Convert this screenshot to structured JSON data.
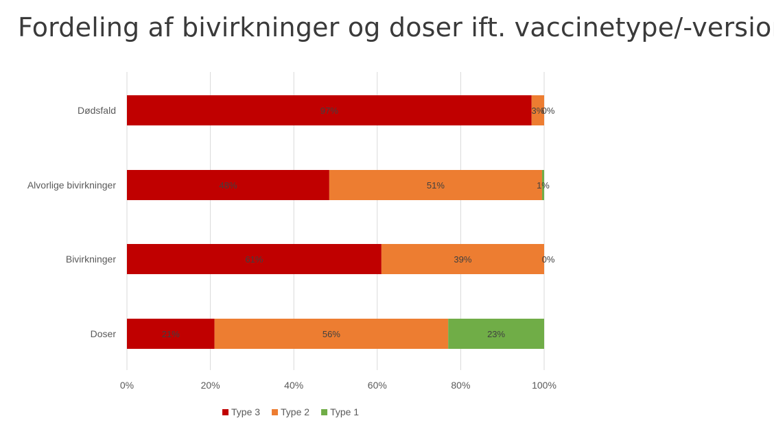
{
  "title": "Fordeling af bivirkninger og doser ift. vaccinetype/-version",
  "chart_data": {
    "type": "bar",
    "orientation": "horizontal",
    "stacked": "percent",
    "categories": [
      "Dødsfald",
      "Alvorlige bivirkninger",
      "Bivirkninger",
      "Doser"
    ],
    "series": [
      {
        "name": "Type 3",
        "color": "#C00000",
        "values": [
          97,
          48.5,
          61,
          21
        ],
        "labels": [
          "97%",
          "48%",
          "61%",
          "21%"
        ]
      },
      {
        "name": "Type 2",
        "color": "#ED7D31",
        "values": [
          3,
          51,
          39,
          56
        ],
        "labels": [
          "3%",
          "51%",
          "39%",
          "56%"
        ]
      },
      {
        "name": "Type 1",
        "color": "#70AD47",
        "values": [
          0,
          0.5,
          0,
          23
        ],
        "labels": [
          "0%",
          "1%",
          "0%",
          "23%"
        ]
      }
    ],
    "xlim": [
      0,
      100
    ],
    "xticks": [
      "0%",
      "20%",
      "40%",
      "60%",
      "80%",
      "100%"
    ],
    "grid": true,
    "legend": "bottom"
  }
}
